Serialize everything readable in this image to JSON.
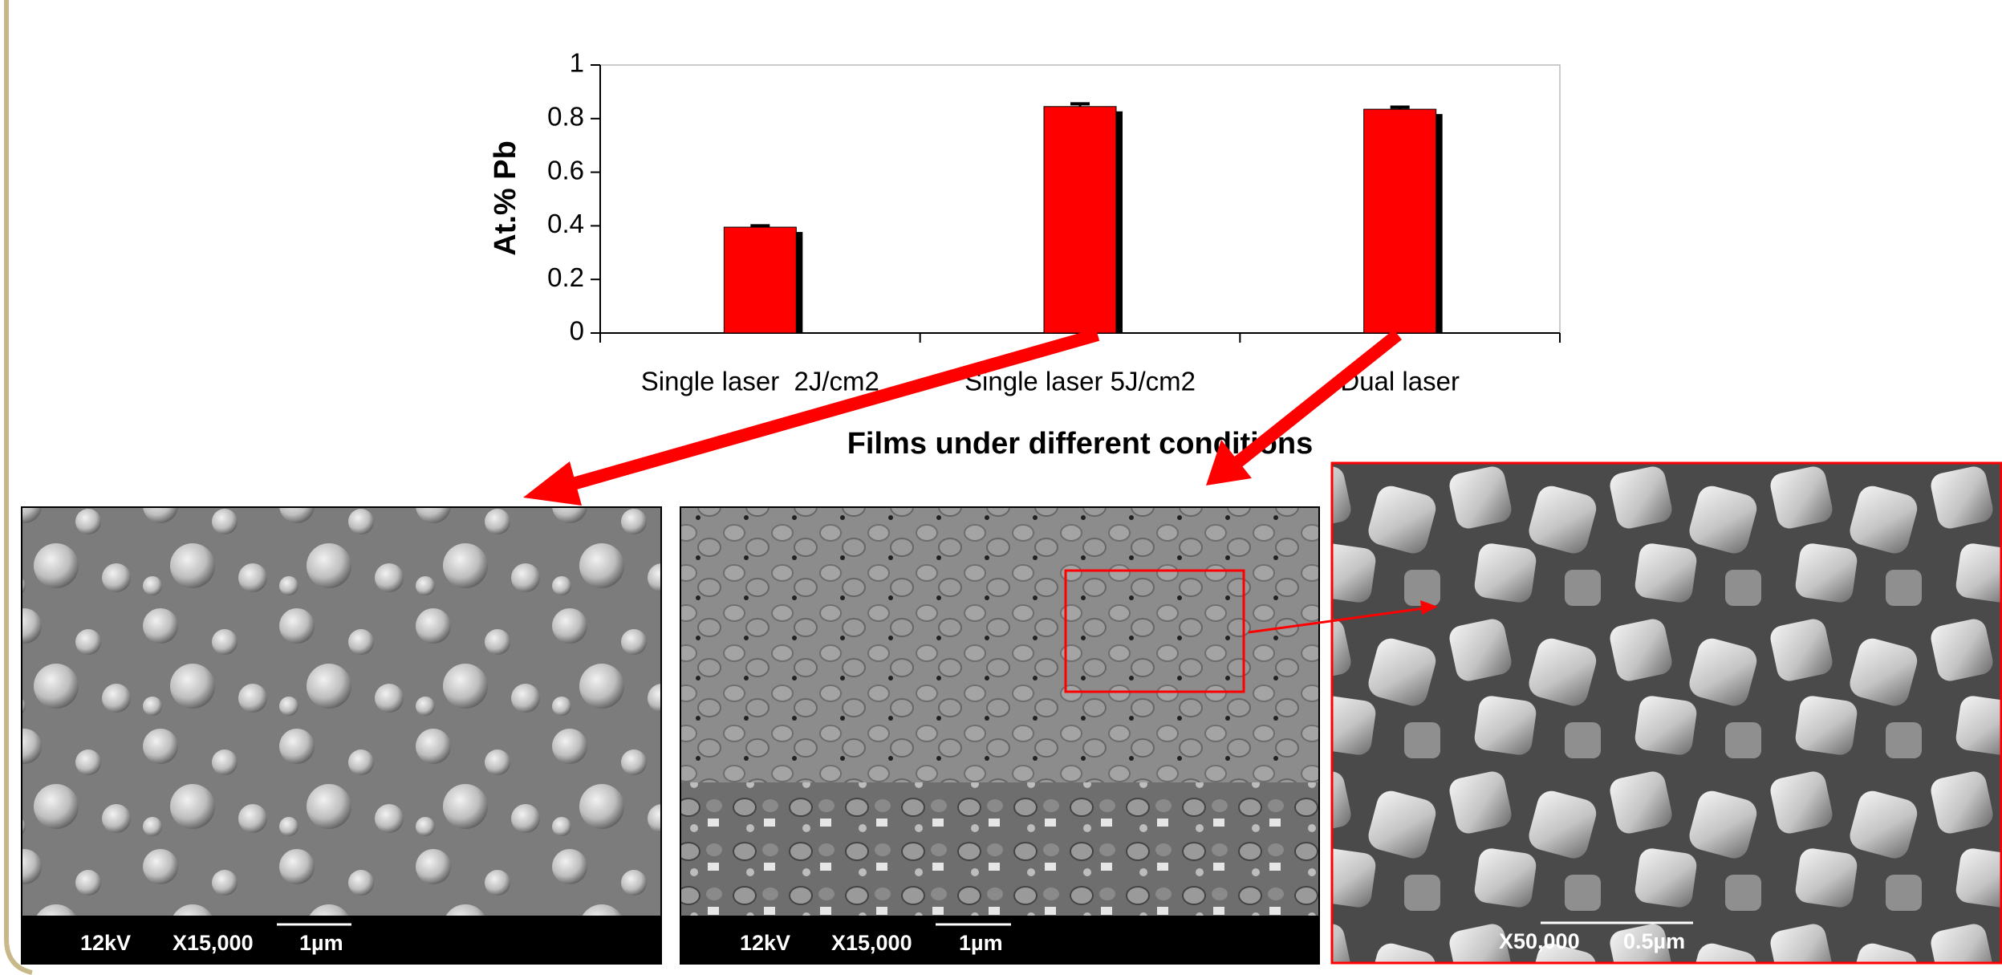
{
  "chart_data": {
    "type": "bar",
    "x_label": "Films under different conditions",
    "y_label": "At.% Pb",
    "categories": [
      "Single laser  2J/cm2",
      "Single laser 5J/cm2",
      "Dual laser"
    ],
    "values": [
      0.395,
      0.845,
      0.835
    ],
    "errors": [
      0.005,
      0.01,
      0.008
    ],
    "color": "#ff0000",
    "ylim": [
      0,
      1
    ],
    "yticks": [
      0,
      0.2,
      0.4,
      0.6,
      0.8,
      1
    ]
  },
  "images": [
    {
      "voltage": "12kV",
      "magnification": "X15,000",
      "scale": "1µm"
    },
    {
      "voltage": "12kV",
      "magnification": "X15,000",
      "scale": "1µm"
    },
    {
      "magnification": "X50,000",
      "scale": "0.5µm"
    }
  ]
}
